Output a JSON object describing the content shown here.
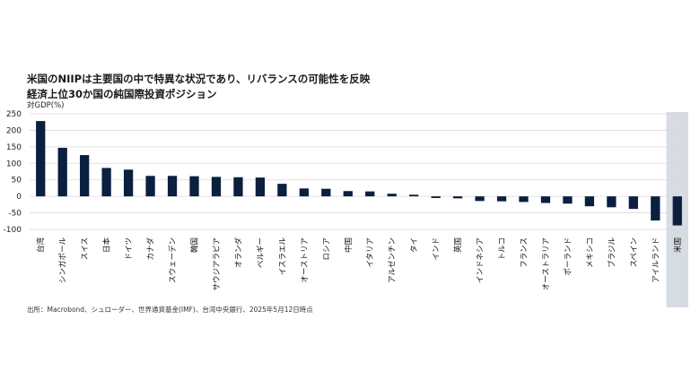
{
  "title": "米国のNIIPは主要国の中で特異な状況であり、リバランスの可能性を反映",
  "subtitle": "経済上位30か国の純国際投資ポジション",
  "source": "出所：Macrobond、シュローダー、世界通貨基金(IMF)、台湾中央銀行、2025年5月12日時点",
  "colors": {
    "bar": "#0b1f3f",
    "highlight_band": "#d7dbe2",
    "grid": "#d9d9d9"
  },
  "chart_data": {
    "type": "bar",
    "ylabel": "対GDP(%)",
    "ylim": [
      -100,
      250
    ],
    "yticks": [
      250,
      200,
      150,
      100,
      50,
      0,
      -50,
      -100
    ],
    "grid": true,
    "highlight": "米国",
    "categories": [
      "台湾",
      "シンガポール",
      "スイス",
      "日本",
      "ドイツ",
      "カナダ",
      "スウェーデン",
      "韓国",
      "サウジアラビア",
      "オランダ",
      "ベルギー",
      "イスラエル",
      "オーストリア",
      "ロシア",
      "中国",
      "イタリア",
      "アルゼンチン",
      "タイ",
      "インド",
      "英国",
      "インドネシア",
      "トルコ",
      "フランス",
      "オーストラリア",
      "ポーランド",
      "メキシコ",
      "ブラジル",
      "スペイン",
      "アイルランド",
      "米国"
    ],
    "values": [
      228,
      147,
      125,
      86,
      81,
      62,
      62,
      61,
      59,
      58,
      57,
      38,
      24,
      23,
      16,
      15,
      8,
      5,
      -5,
      -6,
      -14,
      -15,
      -17,
      -20,
      -22,
      -30,
      -33,
      -38,
      -73,
      -88
    ]
  }
}
